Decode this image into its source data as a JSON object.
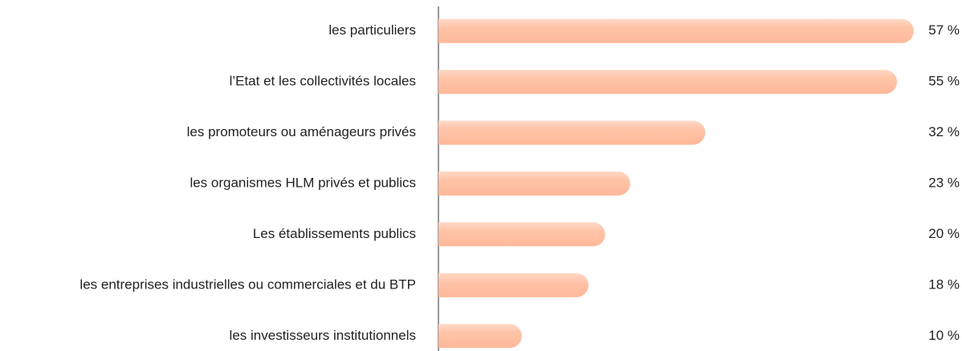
{
  "chart_data": {
    "type": "barh",
    "categories": [
      "les particuliers",
      "l’Etat et les collectivités locales",
      "les promoteurs ou aménageurs privés",
      "les organismes HLM privés et publics",
      "Les établissements publics",
      "les entreprises industrielles ou commerciales et du BTP",
      "les investisseurs institutionnels"
    ],
    "values": [
      57,
      55,
      32,
      23,
      20,
      18,
      10
    ],
    "value_labels": [
      "57 %",
      "55 %",
      "32 %",
      "23 %",
      "20 %",
      "18 %",
      "10 %"
    ],
    "color": "#ffb899",
    "xlim": [
      0,
      60
    ]
  }
}
